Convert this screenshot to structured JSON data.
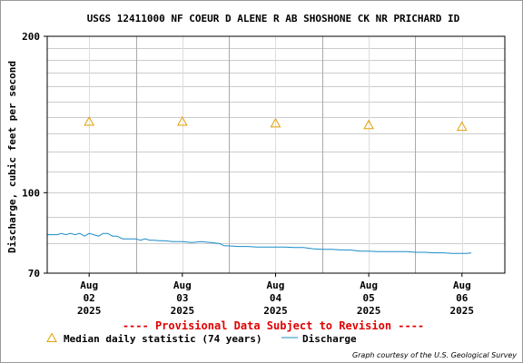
{
  "chart_data": {
    "type": "line",
    "title": "USGS 12411000 NF COEUR D ALENE R AB SHOSHONE CK NR PRICHARD ID",
    "ylabel": "Discharge, cubic feet per second",
    "xlabel": "",
    "y_scale": "log",
    "ylim": [
      70,
      200
    ],
    "y_ticks": [
      70,
      100,
      200
    ],
    "y_tick_labels": [
      "70",
      "100",
      "200"
    ],
    "xlim": [
      1.55,
      6.46
    ],
    "x_ticks": [
      {
        "x": 2,
        "label": [
          "Aug",
          "02",
          "2025"
        ]
      },
      {
        "x": 3,
        "label": [
          "Aug",
          "03",
          "2025"
        ]
      },
      {
        "x": 4,
        "label": [
          "Aug",
          "04",
          "2025"
        ]
      },
      {
        "x": 5,
        "label": [
          "Aug",
          "05",
          "2025"
        ]
      },
      {
        "x": 6,
        "label": [
          "Aug",
          "06",
          "2025"
        ]
      }
    ],
    "grid": true,
    "notice": "---- Provisional Data Subject to Revision ----",
    "series": [
      {
        "name": "Median daily statistic (74 years)",
        "kind": "marker",
        "marker": "triangle",
        "color": "#e0a000",
        "x": [
          2.0,
          3.0,
          4.0,
          5.0,
          6.0
        ],
        "y": [
          137,
          137,
          136,
          135,
          134
        ]
      },
      {
        "name": "Discharge",
        "kind": "line",
        "color": "#1a8cc8",
        "x": [
          1.55,
          1.66,
          1.7,
          1.75,
          1.8,
          1.85,
          1.9,
          1.95,
          2.0,
          2.05,
          2.1,
          2.15,
          2.2,
          2.25,
          2.3,
          2.36,
          2.4,
          2.45,
          2.5,
          2.55,
          2.6,
          2.65,
          2.7,
          2.75,
          2.8,
          2.9,
          3.0,
          3.1,
          3.2,
          3.3,
          3.4,
          3.45,
          3.5,
          3.6,
          3.7,
          3.8,
          3.9,
          4.0,
          4.1,
          4.2,
          4.3,
          4.4,
          4.5,
          4.6,
          4.7,
          4.8,
          4.9,
          5.0,
          5.1,
          5.2,
          5.3,
          5.4,
          5.5,
          5.6,
          5.7,
          5.8,
          5.9,
          6.0,
          6.05,
          6.1
        ],
        "y": [
          83.0,
          83.0,
          83.5,
          83.0,
          83.5,
          83.0,
          83.5,
          82.5,
          83.5,
          83.0,
          82.5,
          83.5,
          83.5,
          82.5,
          82.5,
          81.5,
          81.5,
          81.5,
          81.5,
          81.0,
          81.5,
          81.0,
          81.0,
          80.8,
          80.8,
          80.5,
          80.5,
          80.2,
          80.5,
          80.2,
          79.8,
          79.0,
          79.0,
          78.8,
          78.8,
          78.6,
          78.6,
          78.6,
          78.6,
          78.4,
          78.4,
          78.0,
          77.8,
          77.8,
          77.6,
          77.6,
          77.2,
          77.2,
          77.0,
          77.0,
          77.0,
          77.0,
          76.8,
          76.8,
          76.6,
          76.6,
          76.4,
          76.4,
          76.4,
          76.6
        ]
      }
    ],
    "legend": "bottom",
    "credit": "Graph courtesy of the U.S. Geological Survey"
  }
}
